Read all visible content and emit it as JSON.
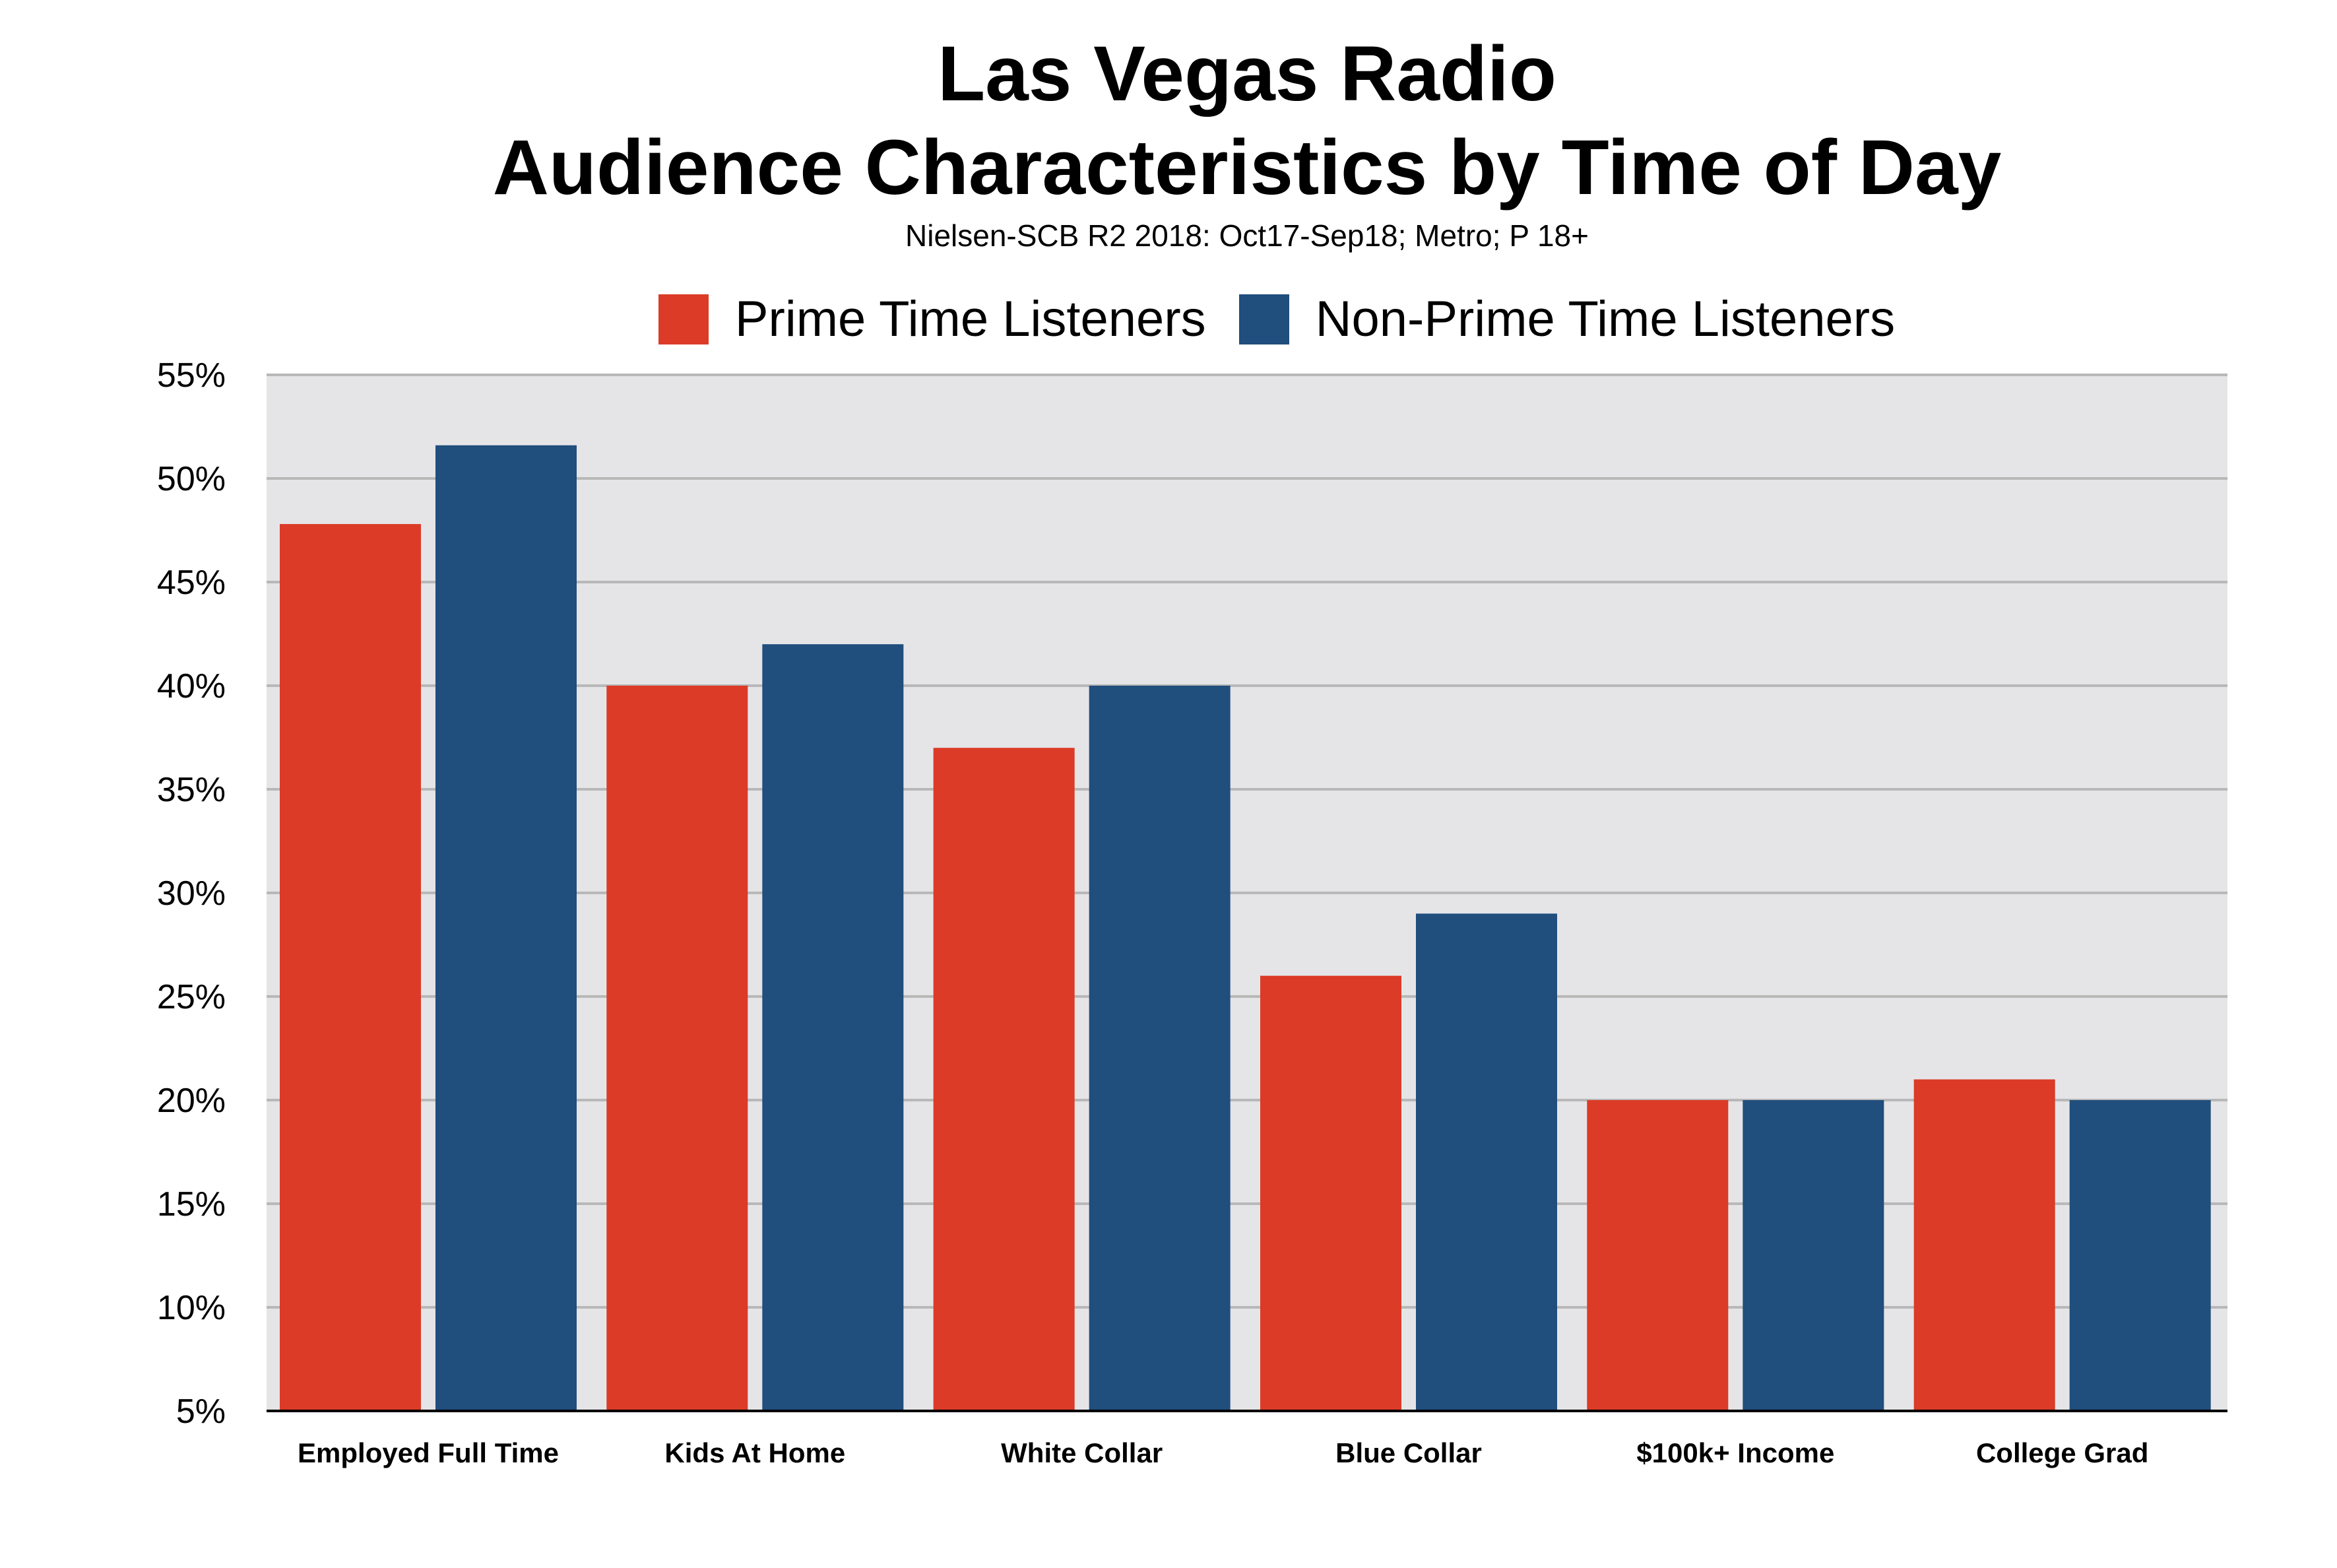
{
  "chart_data": {
    "type": "bar",
    "title": "Las Vegas Radio",
    "title_line2": "Audience Characteristics by Time of Day",
    "subtitle": "Nielsen-SCB R2 2018: Oct17-Sep18; Metro; P 18+",
    "categories": [
      "Employed Full Time",
      "Kids At Home",
      "White Collar",
      "Blue Collar",
      "$100k+ Income",
      "College Grad"
    ],
    "series": [
      {
        "name": "Prime Time Listeners",
        "color": "#DB3B27",
        "values": [
          47.8,
          40,
          37,
          26,
          20,
          21
        ]
      },
      {
        "name": "Non-Prime Time Listeners",
        "color": "#204E7D",
        "values": [
          51.6,
          42,
          40,
          29,
          20,
          20
        ]
      }
    ],
    "ylim": [
      5,
      55
    ],
    "yticks": [
      "5%",
      "10%",
      "15%",
      "20%",
      "25%",
      "30%",
      "35%",
      "40%",
      "45%",
      "50%",
      "55%"
    ],
    "grid": true,
    "legend_position": "top",
    "plot_background": "#E5E5E8"
  }
}
